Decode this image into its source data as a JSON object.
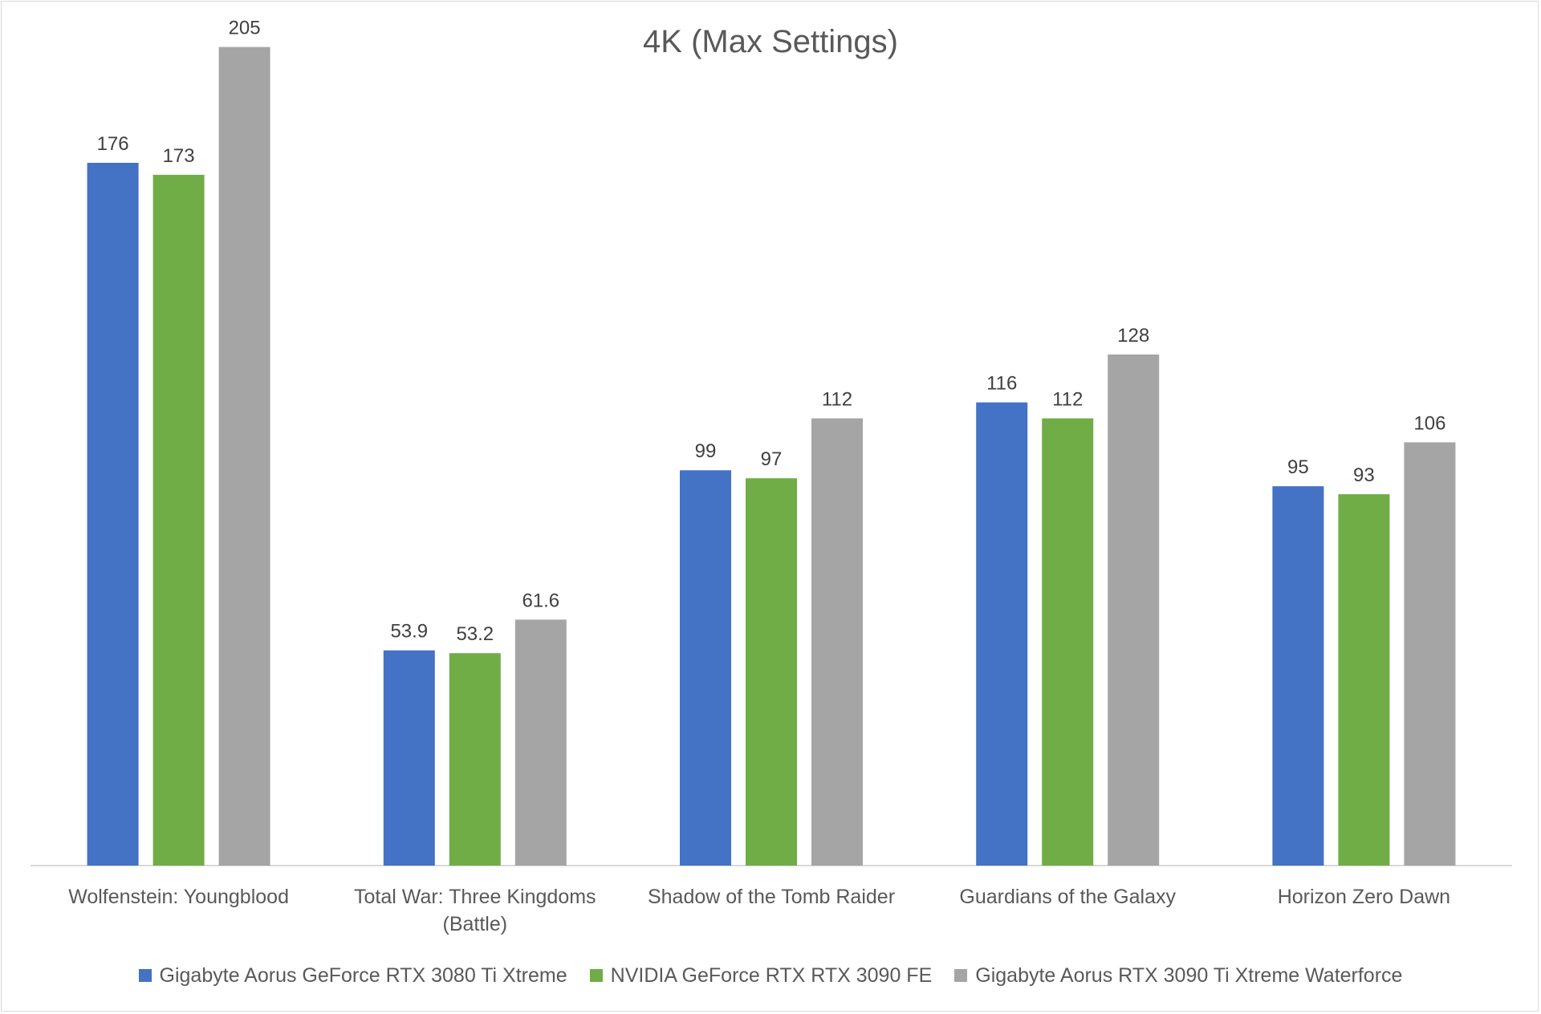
{
  "chart_data": {
    "type": "bar",
    "title": "4K (Max Settings)",
    "xlabel": "",
    "ylabel": "",
    "ylim": [
      0,
      215
    ],
    "grid": false,
    "legend_position": "bottom",
    "categories": [
      [
        "Wolfenstein: Youngblood"
      ],
      [
        "Total War: Three Kingdoms",
        "(Battle)"
      ],
      [
        "Shadow of the Tomb Raider"
      ],
      [
        "Guardians of the Galaxy"
      ],
      [
        "Horizon Zero Dawn"
      ]
    ],
    "series": [
      {
        "name": "Gigabyte Aorus GeForce RTX 3080 Ti Xtreme",
        "color": "#4472c4",
        "values": [
          176,
          53.9,
          99,
          116,
          95
        ]
      },
      {
        "name": "NVIDIA GeForce RTX RTX 3090 FE",
        "color": "#70ad47",
        "values": [
          173,
          53.2,
          97,
          112,
          93
        ]
      },
      {
        "name": "Gigabyte Aorus RTX 3090 Ti Xtreme Waterforce",
        "color": "#a5a5a5",
        "values": [
          205,
          61.6,
          112,
          128,
          106
        ]
      }
    ]
  }
}
